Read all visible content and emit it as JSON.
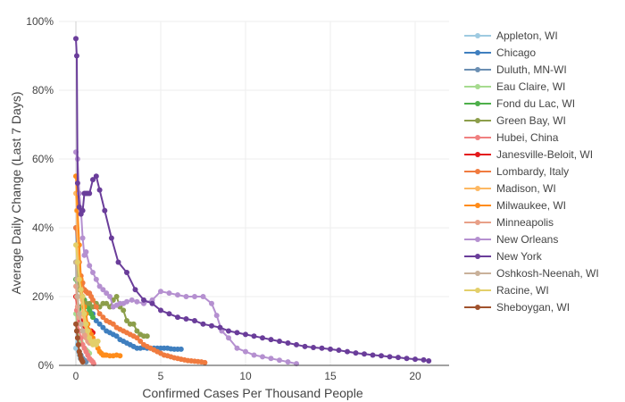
{
  "chart_data": {
    "type": "line",
    "xlabel": "Confirmed Cases Per Thousand People",
    "ylabel": "Average Daily Change (Last 7 Days)",
    "xlim": [
      -1.0,
      22.0
    ],
    "ylim": [
      0,
      1.0
    ],
    "x_ticks": [
      0,
      5,
      10,
      15,
      20
    ],
    "x_tick_labels": [
      "0",
      "5",
      "10",
      "15",
      "20"
    ],
    "y_ticks": [
      0,
      0.2,
      0.4,
      0.6,
      0.8,
      1.0
    ],
    "y_tick_labels": [
      "0%",
      "20%",
      "40%",
      "60%",
      "80%",
      "100%"
    ],
    "grid": true,
    "legend_position": "right",
    "series": [
      {
        "name": "Appleton, WI",
        "color": "#9ecae1",
        "x": [
          0.0,
          0.05,
          0.1,
          0.15,
          0.2,
          0.25
        ],
        "y": [
          0.05,
          0.1,
          0.06,
          0.04,
          0.03,
          0.02
        ]
      },
      {
        "name": "Chicago",
        "color": "#3f7fbf",
        "x": [
          0.0,
          0.05,
          0.1,
          0.2,
          0.3,
          0.4,
          0.5,
          0.6,
          0.8,
          1.0,
          1.2,
          1.4,
          1.6,
          1.8,
          2.0,
          2.2,
          2.4,
          2.6,
          2.8,
          3.0,
          3.2,
          3.4,
          3.6,
          3.8,
          4.0,
          4.2,
          4.4,
          4.6,
          4.8,
          5.0,
          5.2,
          5.4,
          5.6,
          5.8,
          6.0,
          6.2
        ],
        "y": [
          0.4,
          0.35,
          0.3,
          0.25,
          0.22,
          0.2,
          0.19,
          0.18,
          0.17,
          0.15,
          0.13,
          0.12,
          0.11,
          0.1,
          0.095,
          0.09,
          0.085,
          0.075,
          0.07,
          0.065,
          0.06,
          0.055,
          0.05,
          0.05,
          0.052,
          0.05,
          0.05,
          0.05,
          0.05,
          0.05,
          0.05,
          0.05,
          0.048,
          0.047,
          0.047,
          0.047
        ]
      },
      {
        "name": "Duluth, MN-WI",
        "color": "#6b8fb3",
        "x": [
          0.0,
          0.05,
          0.1,
          0.15,
          0.2,
          0.3,
          0.4,
          0.5,
          0.6
        ],
        "y": [
          0.3,
          0.2,
          0.1,
          0.06,
          0.04,
          0.03,
          0.02,
          0.015,
          0.01
        ]
      },
      {
        "name": "Eau Claire, WI",
        "color": "#a6db8f",
        "x": [
          0.0,
          0.05,
          0.1,
          0.2,
          0.3,
          0.4,
          0.5,
          0.6,
          0.7,
          0.8
        ],
        "y": [
          0.15,
          0.12,
          0.1,
          0.08,
          0.07,
          0.06,
          0.05,
          0.045,
          0.04,
          0.035
        ]
      },
      {
        "name": "Fond du Lac, WI",
        "color": "#4daf4a",
        "x": [
          0.0,
          0.1,
          0.2,
          0.3,
          0.4,
          0.5,
          0.6,
          0.7,
          0.8,
          0.9,
          1.0
        ],
        "y": [
          0.25,
          0.2,
          0.15,
          0.17,
          0.2,
          0.19,
          0.18,
          0.17,
          0.16,
          0.15,
          0.14
        ]
      },
      {
        "name": "Green Bay, WI",
        "color": "#8c9e4a",
        "x": [
          0.0,
          0.2,
          0.4,
          0.6,
          0.8,
          1.0,
          1.2,
          1.4,
          1.6,
          1.8,
          2.0,
          2.2,
          2.4,
          2.6,
          2.8,
          3.0,
          3.2,
          3.4,
          3.6,
          3.8,
          4.0,
          4.2
        ],
        "y": [
          0.3,
          0.22,
          0.19,
          0.18,
          0.18,
          0.17,
          0.18,
          0.17,
          0.18,
          0.18,
          0.17,
          0.19,
          0.2,
          0.17,
          0.16,
          0.13,
          0.12,
          0.12,
          0.1,
          0.09,
          0.085,
          0.085
        ]
      },
      {
        "name": "Hubei, China",
        "color": "#f08080",
        "x": [
          0.0,
          0.05,
          0.1,
          0.2,
          0.3,
          0.4,
          0.5,
          0.6,
          0.7,
          0.8,
          0.9,
          1.0,
          1.05
        ],
        "y": [
          0.2,
          0.16,
          0.12,
          0.1,
          0.08,
          0.06,
          0.05,
          0.04,
          0.03,
          0.02,
          0.015,
          0.01,
          0.005
        ]
      },
      {
        "name": "Janesville-Beloit, WI",
        "color": "#e41a1c",
        "x": [
          0.0,
          0.1,
          0.2,
          0.3,
          0.4,
          0.5,
          0.6,
          0.7,
          0.8,
          0.9,
          1.0
        ],
        "y": [
          0.2,
          0.17,
          0.15,
          0.13,
          0.12,
          0.115,
          0.11,
          0.105,
          0.1,
          0.1,
          0.095
        ]
      },
      {
        "name": "Lombardy, Italy",
        "color": "#f07b3f",
        "x": [
          0.0,
          0.1,
          0.2,
          0.3,
          0.4,
          0.5,
          0.6,
          0.7,
          0.8,
          0.9,
          1.0,
          1.2,
          1.4,
          1.6,
          1.8,
          2.0,
          2.2,
          2.4,
          2.6,
          2.8,
          3.0,
          3.2,
          3.4,
          3.6,
          3.8,
          4.0,
          4.2,
          4.4,
          4.6,
          4.8,
          5.0,
          5.2,
          5.4,
          5.6,
          5.8,
          6.0,
          6.2,
          6.4,
          6.6,
          6.8,
          7.0,
          7.2,
          7.4,
          7.6
        ],
        "y": [
          0.4,
          0.35,
          0.3,
          0.26,
          0.24,
          0.22,
          0.215,
          0.21,
          0.21,
          0.2,
          0.19,
          0.17,
          0.15,
          0.14,
          0.13,
          0.125,
          0.12,
          0.11,
          0.105,
          0.1,
          0.095,
          0.09,
          0.085,
          0.08,
          0.07,
          0.06,
          0.055,
          0.05,
          0.045,
          0.04,
          0.035,
          0.03,
          0.028,
          0.025,
          0.022,
          0.02,
          0.018,
          0.016,
          0.014,
          0.013,
          0.012,
          0.011,
          0.01,
          0.008
        ]
      },
      {
        "name": "Madison, WI",
        "color": "#fdb863",
        "x": [
          0.0,
          0.05,
          0.1,
          0.15,
          0.2,
          0.3,
          0.4,
          0.5,
          0.6,
          0.7,
          0.8,
          0.9,
          1.0
        ],
        "y": [
          0.5,
          0.45,
          0.35,
          0.3,
          0.25,
          0.2,
          0.15,
          0.12,
          0.1,
          0.09,
          0.08,
          0.075,
          0.07
        ]
      },
      {
        "name": "Milwaukee, WI",
        "color": "#ff8c1a",
        "x": [
          0.0,
          0.1,
          0.2,
          0.3,
          0.4,
          0.5,
          0.6,
          0.7,
          0.8,
          0.9,
          1.0,
          1.1,
          1.2,
          1.3,
          1.4,
          1.5,
          1.6,
          1.7,
          1.8,
          2.0,
          2.2,
          2.4,
          2.6
        ],
        "y": [
          0.55,
          0.45,
          0.35,
          0.25,
          0.2,
          0.17,
          0.15,
          0.12,
          0.1,
          0.09,
          0.08,
          0.07,
          0.06,
          0.05,
          0.04,
          0.035,
          0.03,
          0.03,
          0.03,
          0.028,
          0.028,
          0.03,
          0.028
        ]
      },
      {
        "name": "Minneapolis",
        "color": "#e8a088",
        "x": [
          0.0,
          0.05,
          0.1,
          0.2,
          0.3,
          0.4,
          0.5,
          0.6,
          0.7,
          0.8
        ],
        "y": [
          0.23,
          0.2,
          0.17,
          0.14,
          0.12,
          0.1,
          0.09,
          0.08,
          0.07,
          0.065
        ]
      },
      {
        "name": "New Orleans",
        "color": "#b590d0",
        "x": [
          0.0,
          0.1,
          0.2,
          0.3,
          0.4,
          0.5,
          0.6,
          0.8,
          1.0,
          1.2,
          1.4,
          1.6,
          1.8,
          2.0,
          2.2,
          2.4,
          2.6,
          2.8,
          3.0,
          3.3,
          3.6,
          4.0,
          4.5,
          5.0,
          5.5,
          6.0,
          6.5,
          7.0,
          7.5,
          8.0,
          8.3,
          8.6,
          9.0,
          9.5,
          10.0,
          10.5,
          11.0,
          11.5,
          12.0,
          12.5,
          13.0
        ],
        "y": [
          0.62,
          0.6,
          0.5,
          0.45,
          0.37,
          0.32,
          0.33,
          0.29,
          0.27,
          0.25,
          0.23,
          0.22,
          0.21,
          0.2,
          0.17,
          0.175,
          0.18,
          0.18,
          0.185,
          0.19,
          0.185,
          0.18,
          0.19,
          0.215,
          0.21,
          0.205,
          0.2,
          0.2,
          0.2,
          0.18,
          0.145,
          0.1,
          0.08,
          0.05,
          0.04,
          0.03,
          0.025,
          0.02,
          0.015,
          0.01,
          0.005
        ]
      },
      {
        "name": "New York",
        "color": "#6a3d9a",
        "x": [
          0.0,
          0.05,
          0.1,
          0.2,
          0.3,
          0.4,
          0.5,
          0.6,
          0.7,
          0.8,
          1.0,
          1.2,
          1.4,
          1.7,
          2.1,
          2.5,
          3.0,
          3.5,
          4.0,
          4.5,
          5.0,
          5.5,
          6.0,
          6.5,
          7.0,
          7.5,
          8.0,
          8.5,
          9.0,
          9.5,
          10.0,
          10.5,
          11.0,
          11.5,
          12.0,
          12.5,
          13.0,
          13.5,
          14.0,
          14.5,
          15.0,
          15.5,
          16.0,
          16.5,
          17.0,
          17.5,
          18.0,
          18.5,
          19.0,
          19.5,
          20.0,
          20.5,
          20.8
        ],
        "y": [
          0.95,
          0.9,
          0.53,
          0.46,
          0.44,
          0.45,
          0.5,
          0.5,
          0.5,
          0.5,
          0.54,
          0.55,
          0.51,
          0.45,
          0.37,
          0.3,
          0.27,
          0.22,
          0.19,
          0.18,
          0.16,
          0.15,
          0.14,
          0.135,
          0.13,
          0.12,
          0.115,
          0.11,
          0.1,
          0.095,
          0.09,
          0.085,
          0.08,
          0.075,
          0.07,
          0.065,
          0.06,
          0.055,
          0.052,
          0.05,
          0.047,
          0.044,
          0.04,
          0.036,
          0.033,
          0.03,
          0.028,
          0.025,
          0.023,
          0.02,
          0.018,
          0.016,
          0.013
        ]
      },
      {
        "name": "Oshkosh-Neenah, WI",
        "color": "#c9b19a",
        "x": [
          0.0,
          0.05,
          0.1,
          0.2,
          0.3,
          0.4
        ],
        "y": [
          0.3,
          0.25,
          0.2,
          0.15,
          0.12,
          0.1
        ]
      },
      {
        "name": "Racine, WI",
        "color": "#e3cf6a",
        "x": [
          0.0,
          0.1,
          0.2,
          0.3,
          0.4,
          0.5,
          0.6,
          0.7,
          0.8,
          0.9,
          1.0,
          1.1,
          1.2,
          1.3
        ],
        "y": [
          0.35,
          0.3,
          0.25,
          0.22,
          0.2,
          0.15,
          0.12,
          0.1,
          0.08,
          0.07,
          0.06,
          0.07,
          0.06,
          0.07
        ]
      },
      {
        "name": "Sheboygan, WI",
        "color": "#a0522d",
        "x": [
          0.0,
          0.05,
          0.1,
          0.15,
          0.2,
          0.25,
          0.3,
          0.35,
          0.4
        ],
        "y": [
          0.12,
          0.1,
          0.08,
          0.06,
          0.04,
          0.03,
          0.02,
          0.015,
          0.01
        ]
      }
    ]
  }
}
